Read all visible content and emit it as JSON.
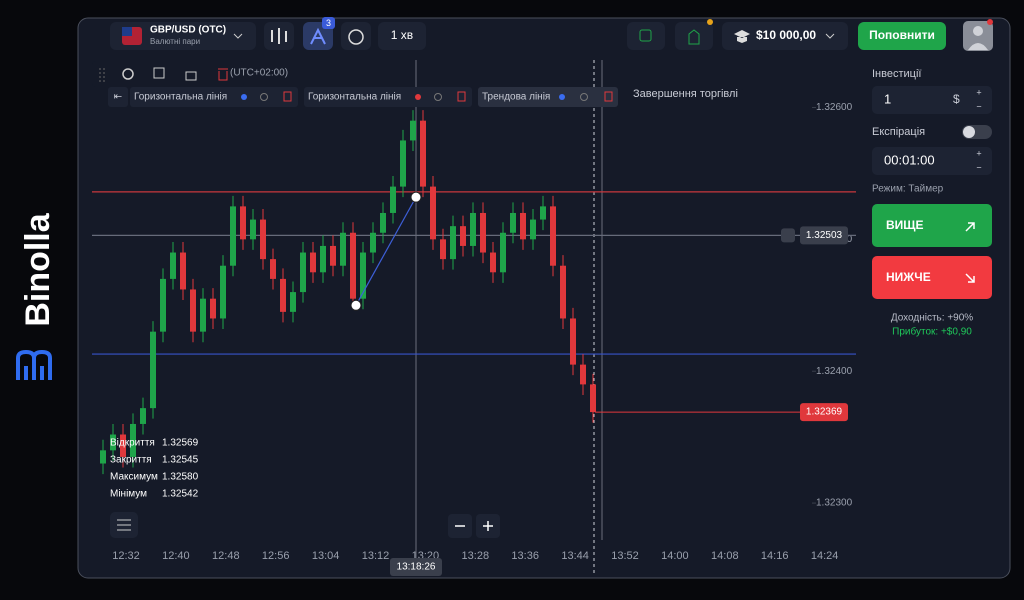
{
  "brand": "Binolla",
  "header": {
    "asset": "GBP/USD (OTC)",
    "asset_group": "Валютні пари",
    "indicator_badge": "3",
    "timeframe": "1 хв",
    "balance": "$10 000,00",
    "deposit_button": "Поповнити"
  },
  "drawing_toolbar": {
    "timezone": "(UTC+02:00)",
    "drawings": [
      "Горизонтальна лінія",
      "Горизонтальна лінія",
      "Трендова лінія"
    ],
    "trade_end_label": "Завершення торгівлі"
  },
  "sidebar": {
    "investment_label": "Інвестиції",
    "investment": "1",
    "currency": "$",
    "expiration_label": "Експірація",
    "expiration": "00:01:00",
    "mode": "Режим: Таймер",
    "up_button": "ВИЩЕ",
    "down_button": "НИЖЧЕ",
    "yield": "Доходність: +90%",
    "profit": "Прибуток: +$0,90"
  },
  "ohlc_info": [
    {
      "label": "Відкриття",
      "value": "1.32569"
    },
    {
      "label": "Закриття",
      "value": "1.32545"
    },
    {
      "label": "Максимум",
      "value": "1.32580"
    },
    {
      "label": "Мінімум",
      "value": "1.32542"
    }
  ],
  "chart_data": {
    "type": "candlestick",
    "open": [
      1.3233,
      1.3234,
      1.32352,
      1.32335,
      1.3236,
      1.32372,
      1.3243,
      1.3247,
      1.3249,
      1.32462,
      1.3243,
      1.32455,
      1.3244,
      1.3248,
      1.32525,
      1.325,
      1.32515,
      1.32485,
      1.3247,
      1.32445,
      1.3246,
      1.3249,
      1.32475,
      1.32495,
      1.3248,
      1.32505,
      1.32455,
      1.3249,
      1.32505,
      1.3252,
      1.3254,
      1.32575,
      1.3259,
      1.3254,
      1.325,
      1.32485,
      1.3251,
      1.32495,
      1.3252,
      1.3249,
      1.32475,
      1.32505,
      1.3252,
      1.325,
      1.32515,
      1.32525,
      1.3248,
      1.3244,
      1.32405,
      1.3239
    ],
    "high": [
      1.32348,
      1.3236,
      1.3236,
      1.32368,
      1.3238,
      1.32438,
      1.32478,
      1.32498,
      1.32498,
      1.3247,
      1.32463,
      1.32463,
      1.32488,
      1.32533,
      1.32533,
      1.32523,
      1.32523,
      1.32493,
      1.32478,
      1.32468,
      1.32498,
      1.32498,
      1.32503,
      1.32503,
      1.32513,
      1.32513,
      1.32498,
      1.32513,
      1.32528,
      1.32548,
      1.32583,
      1.32598,
      1.32598,
      1.32548,
      1.32508,
      1.32518,
      1.32518,
      1.32528,
      1.32528,
      1.32498,
      1.32513,
      1.32528,
      1.32528,
      1.32523,
      1.32533,
      1.32533,
      1.32488,
      1.32448,
      1.32413,
      1.32398
    ],
    "low": [
      1.32322,
      1.32332,
      1.32327,
      1.32327,
      1.32352,
      1.32364,
      1.32422,
      1.32462,
      1.32454,
      1.32422,
      1.32422,
      1.32432,
      1.32432,
      1.32472,
      1.32492,
      1.32492,
      1.32477,
      1.32462,
      1.32437,
      1.32437,
      1.32452,
      1.32467,
      1.32467,
      1.32472,
      1.32472,
      1.32447,
      1.32447,
      1.32482,
      1.32497,
      1.32512,
      1.32532,
      1.32567,
      1.32532,
      1.32492,
      1.32477,
      1.32477,
      1.32487,
      1.32487,
      1.32482,
      1.32467,
      1.32467,
      1.32497,
      1.32492,
      1.32492,
      1.32507,
      1.32472,
      1.32432,
      1.32397,
      1.32382,
      1.32361
    ],
    "close": [
      1.3234,
      1.32352,
      1.32335,
      1.3236,
      1.32372,
      1.3243,
      1.3247,
      1.3249,
      1.32462,
      1.3243,
      1.32455,
      1.3244,
      1.3248,
      1.32525,
      1.325,
      1.32515,
      1.32485,
      1.3247,
      1.32445,
      1.3246,
      1.3249,
      1.32475,
      1.32495,
      1.3248,
      1.32505,
      1.32455,
      1.3249,
      1.32505,
      1.3252,
      1.3254,
      1.32575,
      1.3259,
      1.3254,
      1.325,
      1.32485,
      1.3251,
      1.32495,
      1.3252,
      1.3249,
      1.32475,
      1.32505,
      1.3252,
      1.325,
      1.32515,
      1.32525,
      1.3248,
      1.3244,
      1.32405,
      1.3239,
      1.32369
    ],
    "up_color": "#1fa54a",
    "down_color": "#e0383c",
    "ylim": [
      1.32272,
      1.32636
    ],
    "yticks": [
      {
        "value": 1.326,
        "label": "1.32600"
      },
      {
        "value": 1.325,
        "label": "1.32500"
      },
      {
        "value": 1.324,
        "label": "1.32400"
      },
      {
        "value": 1.323,
        "label": "1.32300"
      }
    ],
    "x_labels": [
      "12:32",
      "12:40",
      "12:48",
      "12:56",
      "13:04",
      "13:12",
      "13:20",
      "13:28",
      "13:36",
      "13:44",
      "13:52",
      "14:00",
      "14:08",
      "14:16",
      "14:24"
    ],
    "levels": [
      {
        "value": 1.32536,
        "color": "#c8373c"
      },
      {
        "value": 1.32503,
        "label": "1.32503",
        "color": "#666b7a"
      },
      {
        "value": 1.32413,
        "color": "#3853c9"
      }
    ],
    "current_price": {
      "value": 1.32369,
      "label": "1.32369",
      "color": "#e0383c"
    },
    "trend_line": {
      "from": 1.3245,
      "to": 1.32532,
      "color": "#3d5fd8"
    },
    "cursor_time": "13:18:26"
  }
}
